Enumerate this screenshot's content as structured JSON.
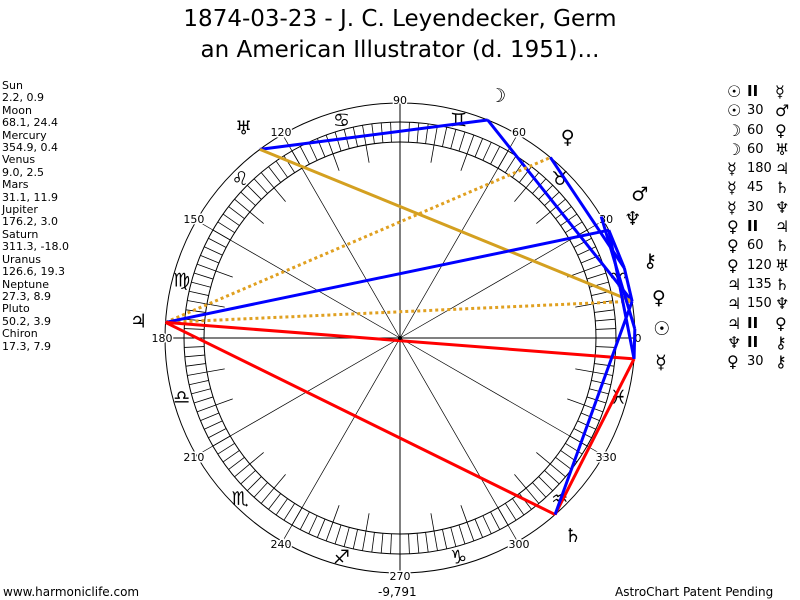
{
  "header": {
    "title_line1": "1874-03-23 - J. C. Leyendecker, Germ",
    "title_line2": "an American Illustrator (d. 1951)..."
  },
  "planets": [
    {
      "name": "Sun",
      "glyph": "☉",
      "values": "2.2, 0.9",
      "lon": 2.2
    },
    {
      "name": "Moon",
      "glyph": "☽",
      "values": "68.1, 24.4",
      "lon": 68.1
    },
    {
      "name": "Mercury",
      "glyph": "☿",
      "values": "354.9, 0.4",
      "lon": 354.9
    },
    {
      "name": "Venus",
      "glyph": "♀",
      "values": "9.0, 2.5",
      "lon": 9.0
    },
    {
      "name": "Mars",
      "glyph": "♂",
      "values": "31.1, 11.9",
      "lon": 31.1
    },
    {
      "name": "Jupiter",
      "glyph": "♃",
      "values": "176.2, 3.0",
      "lon": 176.2
    },
    {
      "name": "Saturn",
      "glyph": "♄",
      "values": "311.3, -18.0",
      "lon": 311.3
    },
    {
      "name": "Uranus",
      "glyph": "♅",
      "values": "126.6, 19.3",
      "lon": 126.6
    },
    {
      "name": "Neptune",
      "glyph": "♆",
      "values": "27.3, 8.9",
      "lon": 27.3
    },
    {
      "name": "Pluto",
      "glyph": "♀",
      "values": "50.2, 3.9",
      "lon": 50.2
    },
    {
      "name": "Chiron",
      "glyph": "⚷",
      "values": "17.3, 7.9",
      "lon": 17.3
    }
  ],
  "aspects": [
    {
      "p1": "☉",
      "aspect": "II",
      "p2": "☿"
    },
    {
      "p1": "☉",
      "aspect": "30",
      "p2": "♂"
    },
    {
      "p1": "☽",
      "aspect": "60",
      "p2": "♀"
    },
    {
      "p1": "☽",
      "aspect": "60",
      "p2": "♅"
    },
    {
      "p1": "☿",
      "aspect": "180",
      "p2": "♃"
    },
    {
      "p1": "☿",
      "aspect": "45",
      "p2": "♄"
    },
    {
      "p1": "☿",
      "aspect": "30",
      "p2": "♆"
    },
    {
      "p1": "♀",
      "aspect": "II",
      "p2": "♃"
    },
    {
      "p1": "♀",
      "aspect": "60",
      "p2": "♄"
    },
    {
      "p1": "♀",
      "aspect": "120",
      "p2": "♅"
    },
    {
      "p1": "♃",
      "aspect": "135",
      "p2": "♄"
    },
    {
      "p1": "♃",
      "aspect": "150",
      "p2": "♆"
    },
    {
      "p1": "♃",
      "aspect": "II",
      "p2": "♀"
    },
    {
      "p1": "♆",
      "aspect": "II",
      "p2": "⚷"
    },
    {
      "p1": "♀",
      "aspect": "30",
      "p2": "⚷"
    }
  ],
  "chart_data": {
    "type": "radial",
    "degree_labels": [
      "0",
      "30",
      "60",
      "90",
      "120",
      "150",
      "180",
      "210",
      "240",
      "270",
      "300",
      "330"
    ],
    "zodiac": [
      "♈",
      "♉",
      "♊",
      "♋",
      "♌",
      "♍",
      "♎",
      "♏",
      "♐",
      "♑",
      "♒",
      "♓"
    ],
    "aspect_lines": [
      {
        "from": "Uranus",
        "to": "Moon",
        "color": "#0000ff",
        "style": "solid"
      },
      {
        "from": "Moon",
        "to": "Venus",
        "color": "#0000ff",
        "style": "solid"
      },
      {
        "from": "Uranus",
        "to": "Venus",
        "color": "#d4a020",
        "style": "solid"
      },
      {
        "from": "Jupiter",
        "to": "Pluto",
        "color": "#e0a020",
        "style": "dotted"
      },
      {
        "from": "Jupiter",
        "to": "Venus",
        "color": "#e0a020",
        "style": "dotted"
      },
      {
        "from": "Jupiter",
        "to": "Neptune",
        "color": "#0000ff",
        "style": "solid"
      },
      {
        "from": "Jupiter",
        "to": "Mercury",
        "color": "#ff0000",
        "style": "solid"
      },
      {
        "from": "Jupiter",
        "to": "Saturn",
        "color": "#ff0000",
        "style": "solid"
      },
      {
        "from": "Mercury",
        "to": "Saturn",
        "color": "#ff0000",
        "style": "solid"
      },
      {
        "from": "Saturn",
        "to": "Venus",
        "color": "#0000ff",
        "style": "solid"
      },
      {
        "from": "Pluto",
        "to": "Chiron",
        "color": "#0000ff",
        "style": "solid"
      },
      {
        "from": "Sun",
        "to": "Mars",
        "color": "#0000ff",
        "style": "solid"
      },
      {
        "from": "Neptune",
        "to": "Chiron",
        "color": "#0000ff",
        "style": "solid"
      },
      {
        "from": "Mercury",
        "to": "Neptune",
        "color": "#0000ff",
        "style": "solid"
      },
      {
        "from": "Sun",
        "to": "Mercury",
        "color": "#0000ff",
        "style": "solid"
      },
      {
        "from": "Venus",
        "to": "Chiron",
        "color": "#0000ff",
        "style": "solid"
      }
    ]
  },
  "footer": {
    "site": "www.harmoniclife.com",
    "score": "-9,791",
    "notice": "AstroChart Patent Pending"
  }
}
